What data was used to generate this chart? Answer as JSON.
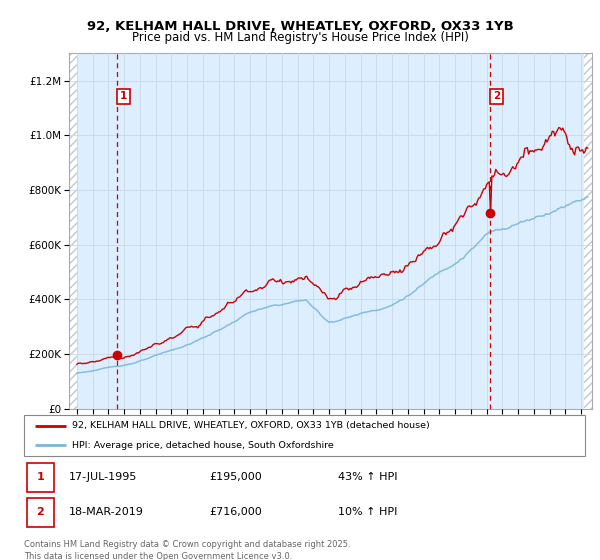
{
  "title_line1": "92, KELHAM HALL DRIVE, WHEATLEY, OXFORD, OX33 1YB",
  "title_line2": "Price paid vs. HM Land Registry's House Price Index (HPI)",
  "legend_line1": "92, KELHAM HALL DRIVE, WHEATLEY, OXFORD, OX33 1YB (detached house)",
  "legend_line2": "HPI: Average price, detached house, South Oxfordshire",
  "annotation1": {
    "label": "1",
    "date": "17-JUL-1995",
    "price": 195000,
    "note": "43% ↑ HPI"
  },
  "annotation2": {
    "label": "2",
    "date": "18-MAR-2019",
    "price": 716000,
    "note": "10% ↑ HPI"
  },
  "footer": "Contains HM Land Registry data © Crown copyright and database right 2025.\nThis data is licensed under the Open Government Licence v3.0.",
  "hpi_color": "#7ab8d9",
  "price_color": "#cc0000",
  "sale1_x": 1995.54,
  "sale1_y": 195000,
  "sale2_x": 2019.21,
  "sale2_y": 716000,
  "ylim": [
    0,
    1300000
  ],
  "xlim_start": 1992.5,
  "xlim_end": 2025.7,
  "grid_color": "#c8d8e8",
  "bg_color": "#ddeeff",
  "hatch_color": "#c0c8d0"
}
